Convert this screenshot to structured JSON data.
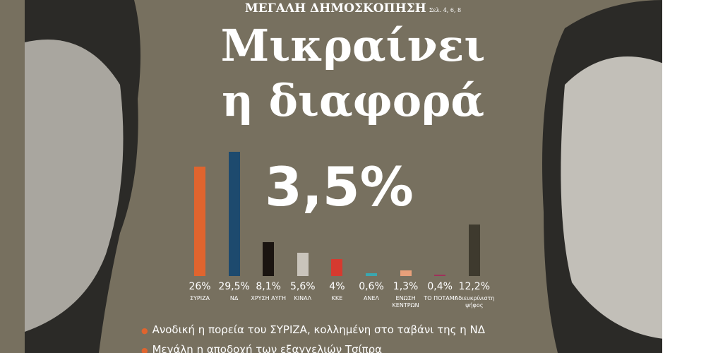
{
  "header": {
    "kicker": "ΜΕΓΑΛΗ ΔΗΜΟΣΚΟΠΗΣΗ",
    "pages": "Σελ. 4, 6, 8",
    "headline": [
      "Μικραίνει",
      "η διαφορά"
    ],
    "gap": "3,5%"
  },
  "chart_data": {
    "type": "bar",
    "categories": [
      "ΣΥΡΙΖΑ",
      "ΝΔ",
      "ΧΡΥΣΗ ΑΥΓΗ",
      "ΚΙΝΑΛ",
      "ΚΚΕ",
      "ΑΝΕΛ",
      "ΕΝΩΣΗ ΚΕΝΤΡΩΝ",
      "ΤΟ ΠΟΤΑΜΙ",
      "Αδιευκρίνιστη ψήφος"
    ],
    "values": [
      26,
      29.5,
      8.1,
      5.6,
      4,
      0.6,
      1.3,
      0.4,
      12.2
    ],
    "value_labels": [
      "26%",
      "29,5%",
      "8,1%",
      "5,6%",
      "4%",
      "0,6%",
      "1,3%",
      "0,4%",
      "12,2%"
    ],
    "colors": [
      "#e0642e",
      "#1d4a6e",
      "#1a1410",
      "#c9c4bb",
      "#d63a2f",
      "#3aa7b0",
      "#e8a07a",
      "#a0305a",
      "#3e3a2e"
    ]
  },
  "bullets": [
    "Ανοδική η πορεία του ΣΥΡΙΖΑ, κολλημένη στο ταβάνι της η ΝΔ",
    "Μεγάλη η αποδοχή των εξαγγελιών Τσίπρα"
  ]
}
